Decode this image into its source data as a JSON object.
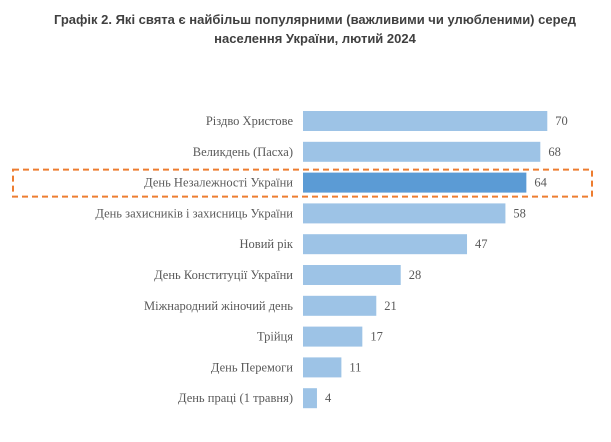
{
  "chart_data": {
    "type": "bar",
    "orientation": "horizontal",
    "title_line1": "Графік 2.  Які свята є найбільш популярними (важливими чи улюбленими) серед",
    "title_line2": "населення України, лютий 2024",
    "categories": [
      "Різдво Христове",
      "Великдень (Пасха)",
      "День Незалежності України",
      "День захисників і захисниць України",
      "Новий рік",
      "День Конституції України",
      "Міжнародний жіночий день",
      "Трійця",
      "День Перемоги",
      "День праці (1 травня)"
    ],
    "values": [
      70,
      68,
      64,
      58,
      47,
      28,
      21,
      17,
      11,
      4
    ],
    "highlighted": "День Незалежності України",
    "colors": {
      "bar": "#9DC3E6",
      "highlight_bar": "#5B9BD5",
      "highlight_box": "#ED7D31",
      "text": "#595959"
    },
    "grid": false,
    "legend": "none"
  }
}
